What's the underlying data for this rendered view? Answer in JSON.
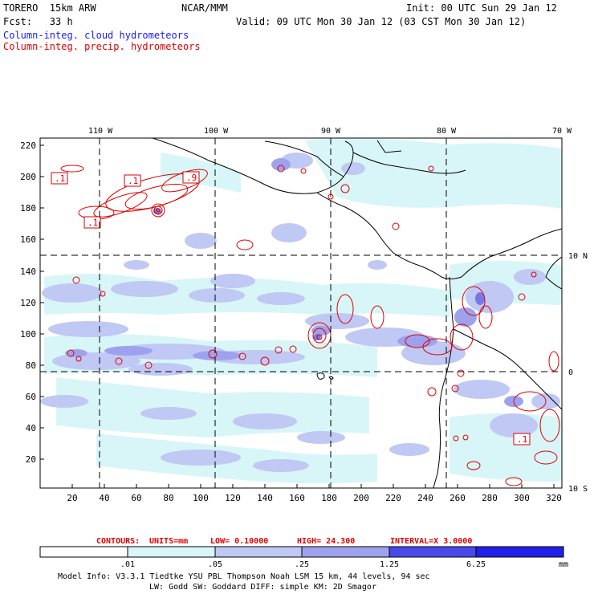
{
  "header": {
    "model": "TORERO  15km ARW",
    "org": "NCAR/MMM",
    "init": "Init: 00 UTC Sun 29 Jan 12",
    "fcst": "Fcst:   33 h",
    "valid": "Valid: 09 UTC Mon 30 Jan 12 (03 CST Mon 30 Jan 12)",
    "field1": "Column-integ. cloud hydrometeors",
    "field2": "Column-integ. precip. hydrometeors"
  },
  "colors": {
    "cloud": "#1a1aff",
    "precip": "#e00000",
    "shade1": "#d8f6f8",
    "shade2": "#c0c8f4",
    "shade3": "#9ea2ee",
    "shade4": "#7a78e6",
    "shade5": "#4a48e8",
    "shade6": "#2020e8"
  },
  "axes": {
    "top_lon_labels": [
      "110 W",
      "100 W",
      "90 W",
      "80 W",
      "70 W"
    ],
    "right_lat_labels": [
      "10 N",
      "0",
      "10 S"
    ],
    "y_ticks": [
      "220",
      "200",
      "180",
      "160",
      "140",
      "120",
      "100",
      "80",
      "60",
      "40",
      "20"
    ],
    "x_ticks": [
      "20",
      "40",
      "60",
      "80",
      "100",
      "120",
      "140",
      "160",
      "180",
      "200",
      "220",
      "240",
      "260",
      "280",
      "300",
      "320"
    ]
  },
  "contour_labels": [
    ".1",
    ".1",
    ".9",
    ".1",
    ".1"
  ],
  "contours_info": {
    "label": "CONTOURS:",
    "units": "UNITS=mm",
    "low": "LOW= 0.10000",
    "high": "HIGH=  24.300",
    "interval": "INTERVAL=X  3.0000"
  },
  "colorbar": {
    "ticks": [
      ".01",
      ".05",
      ".25",
      "1.25",
      "6.25"
    ],
    "unit": "mm"
  },
  "footer": {
    "line1": "Model Info: V3.3.1   Tiedtke YSU PBL  Thompson    Noah LSM  15 km,   44 levels,   94 sec",
    "line2": "LW: Godd SW: Goddard DIFF: simple KM: 2D Smagor"
  }
}
